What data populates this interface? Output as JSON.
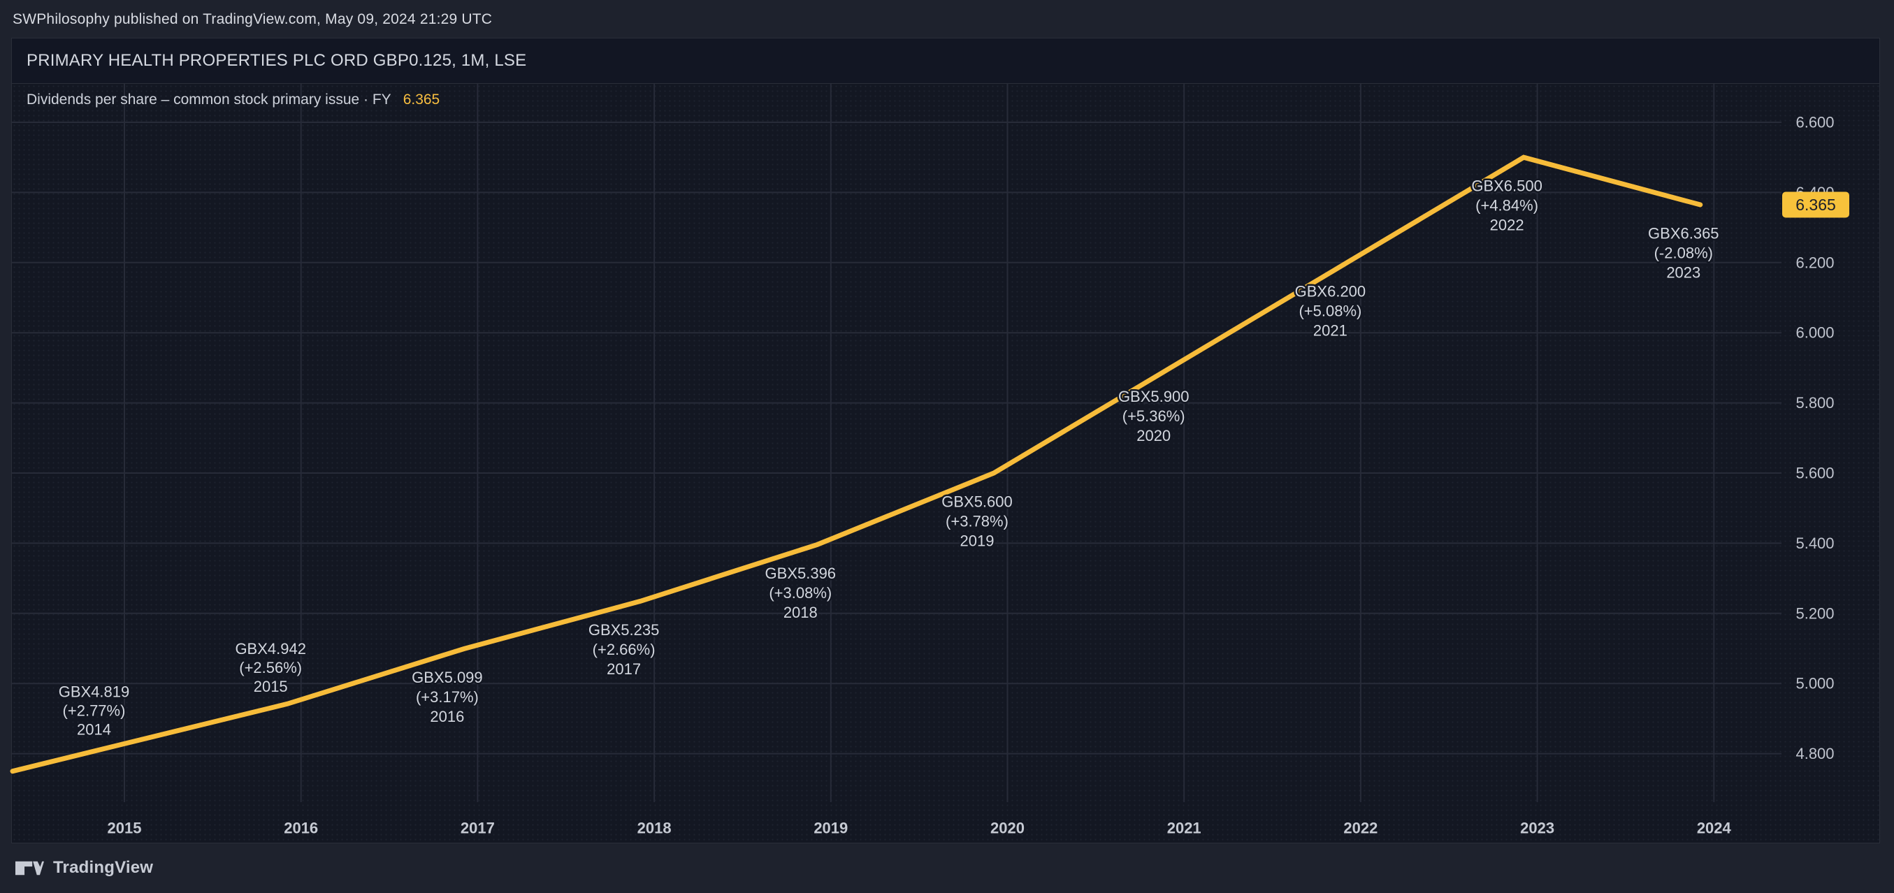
{
  "page": {
    "attribution": "SWPhilosophy published on TradingView.com, May 09, 2024 21:29 UTC",
    "footer_brand": "TradingView"
  },
  "chart": {
    "title": "PRIMARY HEALTH PROPERTIES PLC ORD GBP0.125, 1M, LSE",
    "legend_label": "Dividends per share – common stock primary issue · FY",
    "legend_value": "6.365",
    "price_tag": "6.365"
  },
  "chart_data": {
    "type": "line",
    "title": "Dividends per share – common stock primary issue",
    "series_name": "Dividends per share (GBX)",
    "x": [
      2014,
      2015,
      2016,
      2017,
      2018,
      2019,
      2020,
      2021,
      2022,
      2023
    ],
    "values": [
      4.819,
      4.942,
      5.099,
      5.235,
      5.396,
      5.6,
      5.9,
      6.2,
      6.5,
      6.365
    ],
    "point_labels": [
      {
        "value": "GBX4.819",
        "pct": "(+2.77%)",
        "year": "2014",
        "position": "above"
      },
      {
        "value": "GBX4.942",
        "pct": "(+2.56%)",
        "year": "2015",
        "position": "above"
      },
      {
        "value": "GBX5.099",
        "pct": "(+3.17%)",
        "year": "2016",
        "position": "below"
      },
      {
        "value": "GBX5.235",
        "pct": "(+2.66%)",
        "year": "2017",
        "position": "below"
      },
      {
        "value": "GBX5.396",
        "pct": "(+3.08%)",
        "year": "2018",
        "position": "below"
      },
      {
        "value": "GBX5.600",
        "pct": "(+3.78%)",
        "year": "2019",
        "position": "below"
      },
      {
        "value": "GBX5.900",
        "pct": "(+5.36%)",
        "year": "2020",
        "position": "below"
      },
      {
        "value": "GBX6.200",
        "pct": "(+5.08%)",
        "year": "2021",
        "position": "below"
      },
      {
        "value": "GBX6.500",
        "pct": "(+4.84%)",
        "year": "2022",
        "position": "below"
      },
      {
        "value": "GBX6.365",
        "pct": "(-2.08%)",
        "year": "2023",
        "position": "below"
      }
    ],
    "y_ticks": [
      "6.600",
      "6.400",
      "6.200",
      "6.000",
      "5.800",
      "5.600",
      "5.400",
      "5.200",
      "5.000",
      "4.800"
    ],
    "x_ticks": [
      "2015",
      "2016",
      "2017",
      "2018",
      "2019",
      "2020",
      "2021",
      "2022",
      "2023",
      "2024"
    ],
    "ylim": [
      4.55,
      6.71
    ],
    "left_edge_value": 4.75,
    "last_value": 6.365,
    "grid": true,
    "legend_position": "top-left",
    "colors": {
      "line": "#f7bc3a",
      "tag_bg": "#f7c23b",
      "tag_text": "#1a1e2a",
      "grid_line": "#272b38",
      "point_label_text": "#d3d7df",
      "axis_text": "#c0c4ce",
      "x_axis_text": "#c6cad3",
      "legend_value": "#f8be40",
      "background": "#131722",
      "page_background": "#1e222d"
    }
  }
}
